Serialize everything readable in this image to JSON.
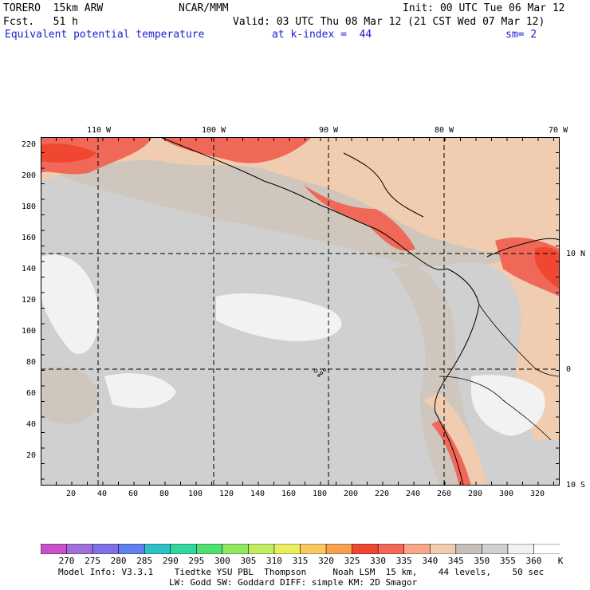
{
  "header": {
    "model": "TORERO  15km ARW",
    "org": "NCAR/MMM",
    "init": "Init: 00 UTC Tue 06 Mar 12",
    "fcst": "Fcst.   51 h",
    "valid": "Valid: 03 UTC Thu 08 Mar 12 (21 CST Wed 07 Mar 12)",
    "field": "Equivalent potential temperature",
    "level": "at k-index =  44",
    "smooth": "sm= 2"
  },
  "map": {
    "y_ticks": [
      "220",
      "200",
      "180",
      "160",
      "140",
      "120",
      "100",
      "80",
      "60",
      "40",
      "20"
    ],
    "x_ticks": [
      "20",
      "40",
      "60",
      "80",
      "100",
      "120",
      "140",
      "160",
      "180",
      "200",
      "220",
      "240",
      "260",
      "280",
      "300",
      "320"
    ],
    "lon_labels": [
      "110 W",
      "100 W",
      "90 W",
      "80 W",
      "70 W"
    ],
    "lat_labels": [
      "10 N",
      "0",
      "10 S"
    ]
  },
  "colorbar": {
    "labels": [
      "270",
      "275",
      "280",
      "285",
      "290",
      "295",
      "300",
      "305",
      "310",
      "315",
      "320",
      "325",
      "330",
      "335",
      "340",
      "345",
      "350",
      "355",
      "360"
    ],
    "unit": "K",
    "colors": [
      "#c850c8",
      "#a070d8",
      "#8070e8",
      "#6080f0",
      "#30c0c8",
      "#30d8a0",
      "#50e070",
      "#90e860",
      "#c0ee60",
      "#e8ee60",
      "#f8c860",
      "#f8a050",
      "#f04830",
      "#f06858",
      "#f8a888",
      "#f0cdb0",
      "#c8c0b8",
      "#d0d0d0",
      "#f2f2f2",
      "#ffffff"
    ]
  },
  "footer": {
    "line1": "Model Info: V3.3.1    Tiedtke YSU PBL  Thompson     Noah LSM  15 km,    44 levels,    50 sec",
    "line2": "LW: Godd SW: Goddard DIFF: simple KM: 2D Smagor"
  }
}
